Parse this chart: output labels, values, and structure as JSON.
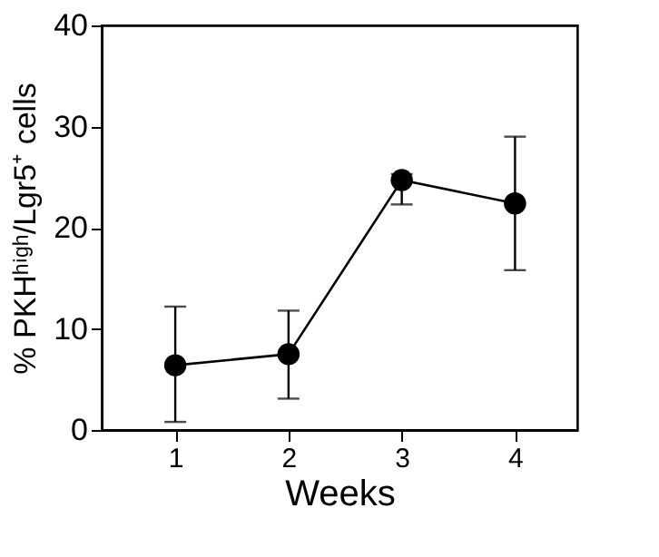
{
  "chart_data": {
    "type": "line",
    "xlabel": "Weeks",
    "ylabel": "% PKHʰⁱᵍʰ/Lgr5⁺ cells",
    "x": [
      1,
      2,
      3,
      4
    ],
    "series": [
      {
        "color": "#000000",
        "values": [
          6.4,
          7.5,
          24.7,
          22.4
        ],
        "errors": [
          [
            0.8,
            12.2
          ],
          [
            3.1,
            11.8
          ],
          [
            22.3,
            25.3
          ],
          [
            15.8,
            29.0
          ]
        ]
      }
    ],
    "xlim": [
      0.35,
      4.55
    ],
    "xticks": [
      1,
      2,
      3,
      4
    ],
    "ylim": [
      0,
      40
    ],
    "yticks": [
      0,
      10,
      20,
      30,
      40
    ],
    "grid": false,
    "marker": "circle",
    "line_style": "solid"
  }
}
